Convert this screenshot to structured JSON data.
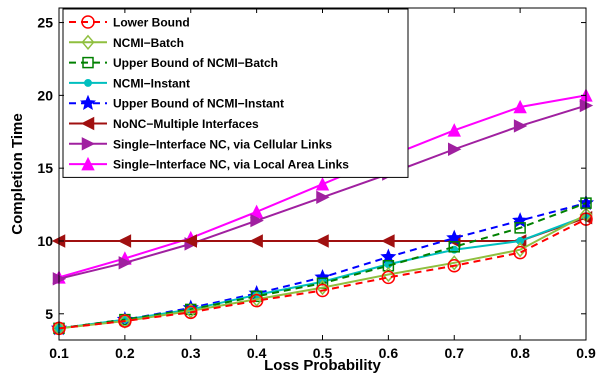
{
  "chart_data": {
    "type": "line",
    "xlabel": "Loss Probability",
    "ylabel": "Completion Time",
    "title": "",
    "xlim": [
      0.1,
      0.9
    ],
    "ylim": [
      3.2,
      26
    ],
    "xticks": [
      0.1,
      0.2,
      0.3,
      0.4,
      0.5,
      0.6,
      0.7,
      0.8,
      0.9
    ],
    "xtick_labels": [
      "0.1",
      "0.2",
      "0.3",
      "0.4",
      "0.5",
      "0.6",
      "0.7",
      "0.8",
      "0.9"
    ],
    "yticks": [
      5,
      10,
      15,
      20,
      25
    ],
    "ytick_labels": [
      "5",
      "10",
      "15",
      "20",
      "25"
    ],
    "grid": false,
    "legend_position": "top-left",
    "x": [
      0.1,
      0.2,
      0.3,
      0.4,
      0.5,
      0.6,
      0.7,
      0.8,
      0.9
    ],
    "series": [
      {
        "name": "Lower Bound",
        "color": "#ff0000",
        "dash": "dashed",
        "marker": "circle",
        "values": [
          4.0,
          4.5,
          5.1,
          5.9,
          6.6,
          7.5,
          8.3,
          9.2,
          11.5
        ]
      },
      {
        "name": "NCMI−Batch",
        "color": "#8fbf3f",
        "dash": "solid",
        "marker": "diamond",
        "values": [
          4.0,
          4.5,
          5.2,
          6.0,
          6.8,
          7.7,
          8.5,
          9.4,
          11.8
        ]
      },
      {
        "name": "Upper Bound of NCMI−Batch",
        "color": "#008000",
        "dash": "dashed",
        "marker": "square",
        "values": [
          4.0,
          4.6,
          5.3,
          6.2,
          7.1,
          8.3,
          9.6,
          10.9,
          12.6
        ]
      },
      {
        "name": "NCMI−Instant",
        "color": "#00bfbf",
        "dash": "solid",
        "marker": "dot",
        "values": [
          4.0,
          4.6,
          5.3,
          6.3,
          7.2,
          8.4,
          9.4,
          10.0,
          11.7
        ]
      },
      {
        "name": "Upper Bound of NCMI−Instant",
        "color": "#0000ff",
        "dash": "dashed",
        "marker": "star",
        "values": [
          4.0,
          4.6,
          5.4,
          6.4,
          7.5,
          8.9,
          10.2,
          11.4,
          12.6
        ]
      },
      {
        "name": "NoNC−Multiple Interfaces",
        "color": "#a01010",
        "dash": "solid",
        "marker": "triangle-left",
        "values": [
          10.0,
          10.0,
          10.0,
          10.0,
          10.0,
          10.0,
          10.0,
          10.0,
          11.6
        ]
      },
      {
        "name": "Single−Interface NC, via Cellular Links",
        "color": "#a020a0",
        "dash": "solid",
        "marker": "triangle-right",
        "values": [
          7.4,
          8.5,
          9.8,
          11.4,
          13.0,
          14.6,
          16.3,
          17.9,
          19.3
        ]
      },
      {
        "name": "Single−Interface NC, via Local Area Links",
        "color": "#ff00ff",
        "dash": "solid",
        "marker": "triangle-up",
        "values": [
          7.5,
          8.8,
          10.2,
          12.0,
          13.9,
          15.8,
          17.6,
          19.2,
          20.0
        ]
      }
    ]
  }
}
